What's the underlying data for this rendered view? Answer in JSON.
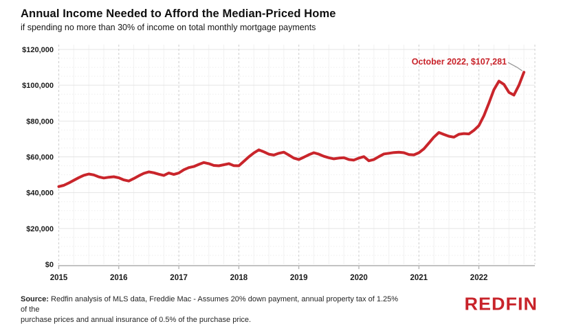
{
  "page": {
    "background": "#ffffff",
    "accent_red": "#c8232a"
  },
  "header": {
    "title": "Annual Income Needed to Afford the Median-Priced Home",
    "subtitle": "if spending no more than 30% of income on total monthly mortgage payments"
  },
  "chart_data": {
    "type": "line",
    "title": "Annual Income Needed to Afford the Median-Priced Home",
    "subtitle": "if spending no more than 30% of income on total monthly mortgage payments",
    "x_axis": {
      "tick_labels": [
        "2015",
        "2016",
        "2017",
        "2018",
        "2019",
        "2020",
        "2021",
        "2022"
      ],
      "data_start": "2015-01",
      "data_end": "2022-10",
      "frequency": "monthly"
    },
    "y_axis": {
      "tick_labels": [
        "$0",
        "$20,000",
        "$40,000",
        "$60,000",
        "$80,000",
        "$100,000",
        "$120,000"
      ],
      "min": 0,
      "max": 120000,
      "major_step": 20000,
      "minor_step": 5000
    },
    "grid": {
      "horizontal_major": "solid",
      "horizontal_minor": "dotted",
      "vertical_years": "dashed",
      "vertical_quarters": "light"
    },
    "legend": "none",
    "series": [
      {
        "name": "Annual income needed to afford median-priced home",
        "color": "#c9252b",
        "start_month": "2015-01",
        "values": [
          43400,
          44100,
          45400,
          46900,
          48400,
          49700,
          50400,
          49900,
          48800,
          48200,
          48600,
          48900,
          48300,
          47100,
          46500,
          47900,
          49400,
          50800,
          51600,
          51100,
          50300,
          49600,
          51000,
          50200,
          51000,
          52800,
          54000,
          54600,
          55800,
          56800,
          56200,
          55200,
          55000,
          55600,
          56200,
          55100,
          55000,
          57500,
          60000,
          62200,
          63900,
          62800,
          61500,
          61000,
          62000,
          62600,
          61000,
          59300,
          58500,
          59800,
          61200,
          62300,
          61500,
          60300,
          59500,
          58900,
          59300,
          59500,
          58500,
          58200,
          59300,
          60100,
          57800,
          58500,
          60100,
          61600,
          62000,
          62400,
          62600,
          62300,
          61300,
          61100,
          62300,
          64500,
          67700,
          71000,
          73600,
          72500,
          71500,
          71000,
          72600,
          73000,
          72800,
          74800,
          77500,
          83000,
          90000,
          97500,
          102300,
          100500,
          96000,
          94500,
          100000,
          107281
        ]
      }
    ],
    "annotation": {
      "label": "October 2022, $107,281",
      "month": "2022-10",
      "value": 107281
    }
  },
  "footer": {
    "source_label": "Source:",
    "source_line1": " Redfin analysis of MLS data, Freddie Mac - Assumes 20% down payment, annual property tax of 1.25% of the",
    "source_line2": "purchase prices and annual insurance of 0.5% of the purchase price.",
    "logo_text": "REDFIN",
    "logo_color": "#c8232a"
  }
}
